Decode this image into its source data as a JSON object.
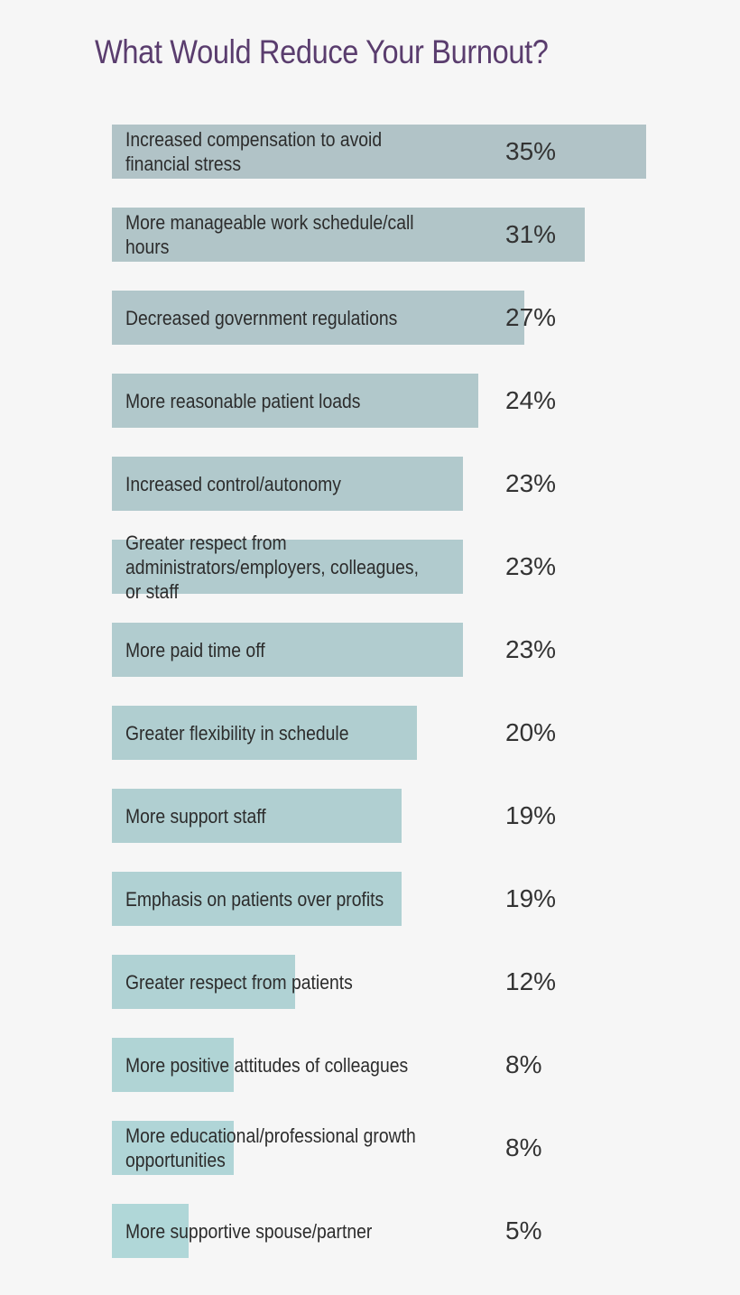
{
  "title": "What Would Reduce Your Burnout?",
  "colors": {
    "title": "#5a3d6e",
    "bar_start": "#b1c3c7",
    "bar_end": "#b0d7d8",
    "background": "#f6f6f6"
  },
  "chart_data": {
    "type": "bar",
    "orientation": "horizontal",
    "title": "What Would Reduce Your Burnout?",
    "xlabel": "",
    "ylabel": "",
    "xlim": [
      0,
      35
    ],
    "grid": false,
    "legend": "none",
    "categories": [
      "Increased compensation to avoid financial stress",
      "More manageable work schedule/call hours",
      "Decreased government regulations",
      "More reasonable patient loads",
      "Increased control/autonomy",
      "Greater respect from administrators/employers, colleagues, or staff",
      "More paid time off",
      "Greater flexibility in schedule",
      "More support staff",
      "Emphasis on patients over profits",
      "Greater respect from patients",
      "More positive attitudes of colleagues",
      "More educational/professional growth opportunities",
      "More supportive spouse/partner"
    ],
    "values": [
      35,
      31,
      27,
      24,
      23,
      23,
      23,
      20,
      19,
      19,
      12,
      8,
      8,
      5
    ],
    "value_labels": [
      "35%",
      "31%",
      "27%",
      "24%",
      "23%",
      "23%",
      "23%",
      "20%",
      "19%",
      "19%",
      "12%",
      "8%",
      "8%",
      "5%"
    ]
  }
}
